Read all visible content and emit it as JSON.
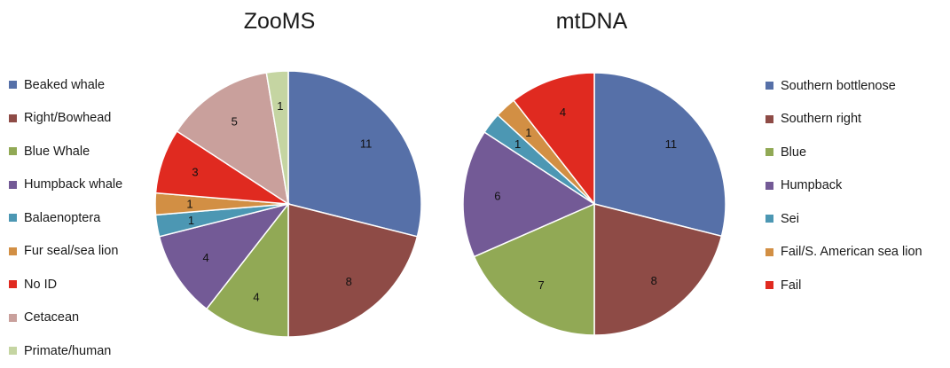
{
  "chart_data": [
    {
      "type": "pie",
      "title": "ZooMS",
      "start_angle": 0,
      "direction": "clockwise",
      "legend_position": "left",
      "slices": [
        {
          "label": "Beaked whale",
          "value": 11,
          "color": "#5670A8"
        },
        {
          "label": "Right/Bowhead",
          "value": 8,
          "color": "#8E4B46"
        },
        {
          "label": "Blue Whale",
          "value": 4,
          "color": "#91A955"
        },
        {
          "label": "Humpback whale",
          "value": 4,
          "color": "#735A96"
        },
        {
          "label": "Balaenoptera",
          "value": 1,
          "color": "#4C97B3"
        },
        {
          "label": "Fur seal/sea lion",
          "value": 1,
          "color": "#D28F44"
        },
        {
          "label": "No ID",
          "value": 3,
          "color": "#E02A20"
        },
        {
          "label": "Cetacean",
          "value": 5,
          "color": "#C9A09C"
        },
        {
          "label": "Primate/human",
          "value": 1,
          "color": "#C5D5A2"
        }
      ]
    },
    {
      "type": "pie",
      "title": "mtDNA",
      "start_angle": 0,
      "direction": "clockwise",
      "legend_position": "right",
      "slices": [
        {
          "label": "Southern bottlenose",
          "value": 11,
          "color": "#5670A8"
        },
        {
          "label": "Southern right",
          "value": 8,
          "color": "#8E4B46"
        },
        {
          "label": "Blue",
          "value": 7,
          "color": "#91A955"
        },
        {
          "label": "Humpback",
          "value": 6,
          "color": "#735A96"
        },
        {
          "label": "Sei",
          "value": 1,
          "color": "#4C97B3"
        },
        {
          "label": "Fail/S. American sea lion",
          "value": 1,
          "color": "#D28F44"
        },
        {
          "label": "Fail",
          "value": 4,
          "color": "#E02A20"
        }
      ]
    }
  ]
}
